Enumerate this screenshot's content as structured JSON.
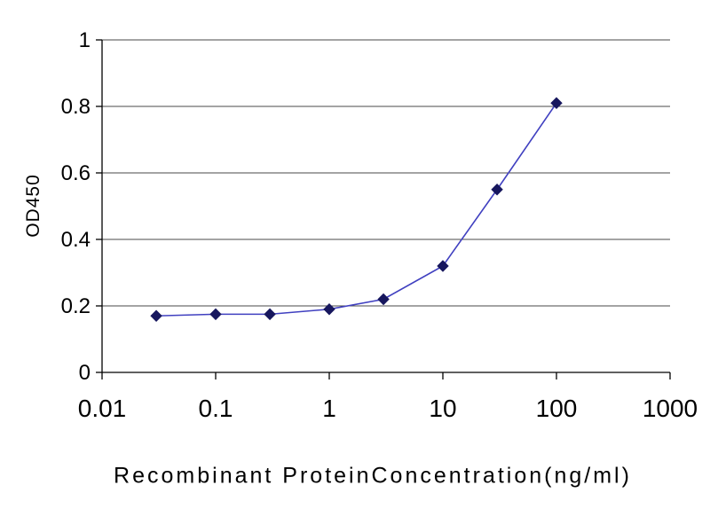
{
  "chart_data": {
    "type": "line",
    "title": "",
    "xlabel": "Recombinant ProteinConcentration(ng/ml)",
    "ylabel": "OD450",
    "xscale": "log",
    "xlim": [
      0.01,
      1000
    ],
    "ylim": [
      0,
      1
    ],
    "x_ticks": [
      0.01,
      0.1,
      1,
      10,
      100,
      1000
    ],
    "x_tick_labels": [
      "0.01",
      "0.1",
      "1",
      "10",
      "100",
      "1000"
    ],
    "y_ticks": [
      0,
      0.2,
      0.4,
      0.6,
      0.8,
      1
    ],
    "y_tick_labels": [
      "0",
      "0.2",
      "0.4",
      "0.6",
      "0.8",
      "1"
    ],
    "grid": "horizontal",
    "legend": "none",
    "series": [
      {
        "name": "OD450",
        "marker": "diamond",
        "x": [
          0.03,
          0.1,
          0.3,
          1,
          3,
          10,
          30,
          100
        ],
        "y": [
          0.17,
          0.175,
          0.175,
          0.19,
          0.22,
          0.32,
          0.55,
          0.81
        ]
      }
    ],
    "colors": {
      "line": "#4040c0",
      "marker": "#17175e",
      "grid": "#4a4a4a",
      "axis": "#000000",
      "text": "#000000",
      "background": "#ffffff"
    }
  }
}
